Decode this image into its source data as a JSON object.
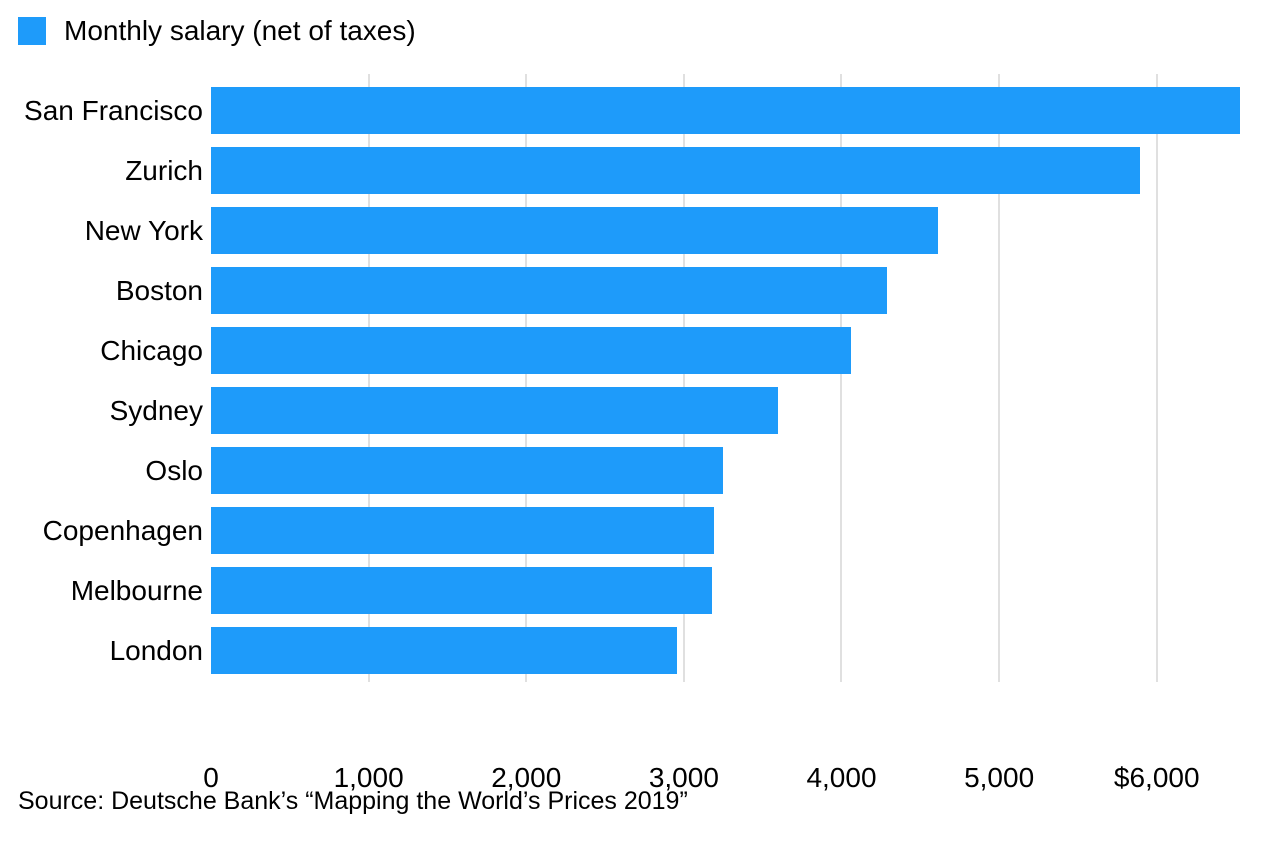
{
  "legend": {
    "label": "Monthly salary (net of taxes)"
  },
  "source": "Source: Deutsche Bank’s “Mapping the World’s Prices 2019”",
  "colors": {
    "bar": "#1E9BFA",
    "gridline": "#E0E0E0",
    "text": "#000000",
    "background": "#FFFFFF"
  },
  "chart_data": {
    "type": "bar",
    "orientation": "horizontal",
    "title": "",
    "legend_entries": [
      "Monthly salary (net of taxes)"
    ],
    "legend_position": "top-left",
    "categories": [
      "San Francisco",
      "Zurich",
      "New York",
      "Boston",
      "Chicago",
      "Sydney",
      "Oslo",
      "Copenhagen",
      "Melbourne",
      "London"
    ],
    "series": [
      {
        "name": "Monthly salary (net of taxes)",
        "values": [
          6526,
          5896,
          4612,
          4288,
          4062,
          3599,
          3246,
          3190,
          3181,
          2956
        ]
      }
    ],
    "xlabel": "",
    "ylabel": "",
    "xlim": [
      0,
      6560
    ],
    "xticks": [
      0,
      1000,
      2000,
      3000,
      4000,
      5000,
      6000
    ],
    "xtick_labels": [
      "0",
      "1,000",
      "2,000",
      "3,000",
      "4,000",
      "5,000",
      "$6,000"
    ],
    "grid": "vertical",
    "annotation": "Source: Deutsche Bank’s “Mapping the World’s Prices 2019”"
  }
}
